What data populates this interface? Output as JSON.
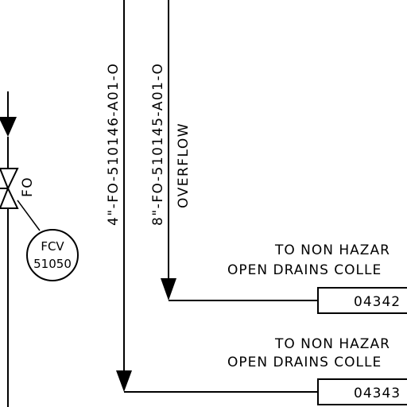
{
  "lines": [
    {
      "id": "line-4in",
      "label": "4\"-FO-510146-A01-O"
    },
    {
      "id": "line-8in",
      "label": "8\"-FO-510145-A01-O",
      "note": "OVERFLOW"
    }
  ],
  "valve": {
    "fail_position": "FO",
    "instrument": {
      "type": "FCV",
      "tag": "51050"
    }
  },
  "destinations": [
    {
      "line1": "TO NON HAZAR",
      "line2": "OPEN DRAINS COLLE",
      "ref": "04342"
    },
    {
      "line1": "TO NON HAZAR",
      "line2": "OPEN DRAINS COLLE",
      "ref": "04343"
    }
  ]
}
